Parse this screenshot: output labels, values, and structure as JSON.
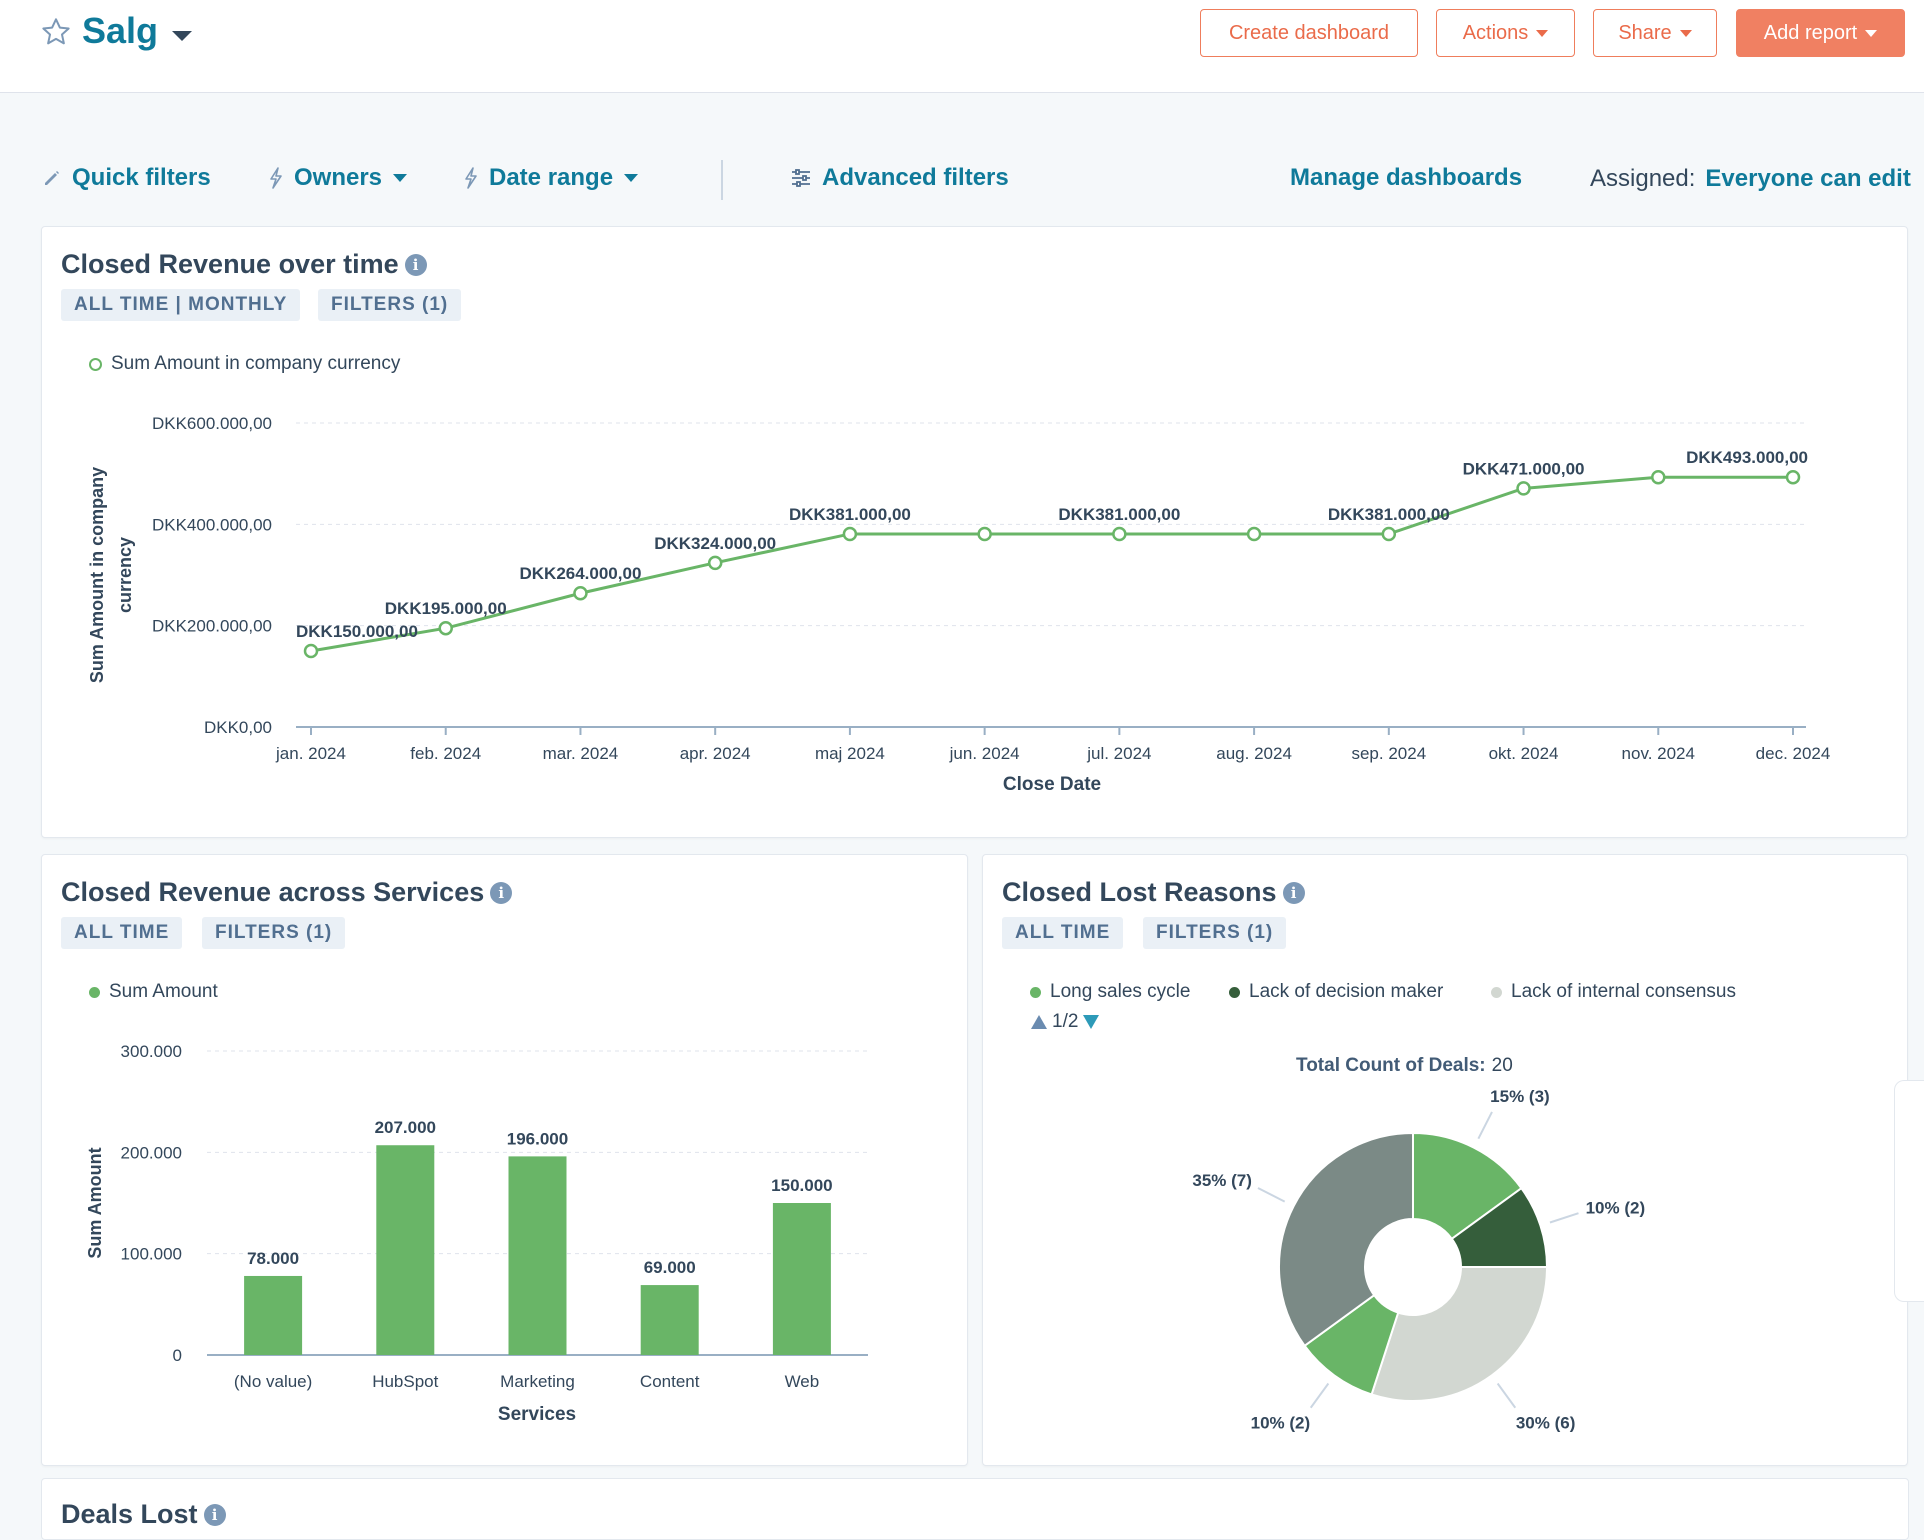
{
  "header": {
    "title": "Salg",
    "buttons": {
      "create_dashboard": "Create dashboard",
      "actions": "Actions",
      "share": "Share",
      "add_report": "Add report"
    }
  },
  "filter_bar": {
    "quick_filters": "Quick filters",
    "owners": "Owners",
    "date_range": "Date range",
    "advanced_filters": "Advanced filters",
    "manage_dashboards": "Manage dashboards",
    "assigned_label": "Assigned:",
    "assigned_value": "Everyone can edit"
  },
  "colors": {
    "accent": "#0f7a9a",
    "orange": "#f08062",
    "green": "#69b567",
    "dark_green": "#355e3b",
    "gray": "#7b8a86",
    "light_gray": "#d2d7d1"
  },
  "card1": {
    "title": "Closed Revenue over time",
    "tags": [
      "ALL TIME | MONTHLY",
      "FILTERS (1)"
    ],
    "legend": "Sum Amount in company currency"
  },
  "card2": {
    "title": "Closed Revenue across Services",
    "tags": [
      "ALL TIME",
      "FILTERS (1)"
    ],
    "legend": "Sum Amount"
  },
  "card3": {
    "title": "Closed Lost Reasons",
    "tags": [
      "ALL TIME",
      "FILTERS (1)"
    ],
    "legend": [
      "Long sales cycle",
      "Lack of decision maker",
      "Lack of internal consensus"
    ],
    "pager": "1/2",
    "total_label": "Total Count of Deals:",
    "total_value": "20"
  },
  "card4": {
    "title": "Deals Lost"
  },
  "chart_data": [
    {
      "type": "line",
      "title": "Closed Revenue over time",
      "xlabel": "Close Date",
      "ylabel": "Sum Amount in company currency",
      "categories": [
        "jan. 2024",
        "feb. 2024",
        "mar. 2024",
        "apr. 2024",
        "maj 2024",
        "jun. 2024",
        "jul. 2024",
        "aug. 2024",
        "sep. 2024",
        "okt. 2024",
        "nov. 2024",
        "dec. 2024"
      ],
      "values": [
        150000,
        195000,
        264000,
        324000,
        381000,
        381000,
        381000,
        381000,
        381000,
        471000,
        493000,
        493000
      ],
      "point_labels": [
        "DKK150.000,00",
        "DKK195.000,00",
        "DKK264.000,00",
        "DKK324.000,00",
        "DKK381.000,00",
        "",
        "DKK381.000,00",
        "",
        "DKK381.000,00",
        "DKK471.000,00",
        "",
        "DKK493.000,00"
      ],
      "ylim": [
        0,
        600000
      ],
      "yticks": [
        0,
        200000,
        400000,
        600000
      ],
      "ytick_labels": [
        "DKK0,00",
        "DKK200.000,00",
        "DKK400.000,00",
        "DKK600.000,00"
      ],
      "series_name": "Sum Amount in company currency"
    },
    {
      "type": "bar",
      "title": "Closed Revenue across Services",
      "xlabel": "Services",
      "ylabel": "Sum Amount",
      "categories": [
        "(No value)",
        "HubSpot",
        "Marketing",
        "Content",
        "Web"
      ],
      "values": [
        78000,
        207000,
        196000,
        69000,
        150000
      ],
      "value_labels": [
        "78.000",
        "207.000",
        "196.000",
        "69.000",
        "150.000"
      ],
      "ylim": [
        0,
        300000
      ],
      "yticks": [
        0,
        100000,
        200000,
        300000
      ],
      "ytick_labels": [
        "0",
        "100.000",
        "200.000",
        "300.000"
      ],
      "series_name": "Sum Amount"
    },
    {
      "type": "pie",
      "title": "Closed Lost Reasons",
      "total_count": 20,
      "slices": [
        {
          "value": 3,
          "label": "15% (3)"
        },
        {
          "value": 2,
          "label": "10% (2)"
        },
        {
          "value": 6,
          "label": "30% (6)"
        },
        {
          "value": 2,
          "label": "10% (2)"
        },
        {
          "value": 7,
          "label": "35% (7)"
        }
      ],
      "slice_colors": [
        "#69b567",
        "#355e3b",
        "#d2d7d1",
        "#69b567",
        "#7b8a86"
      ]
    }
  ]
}
